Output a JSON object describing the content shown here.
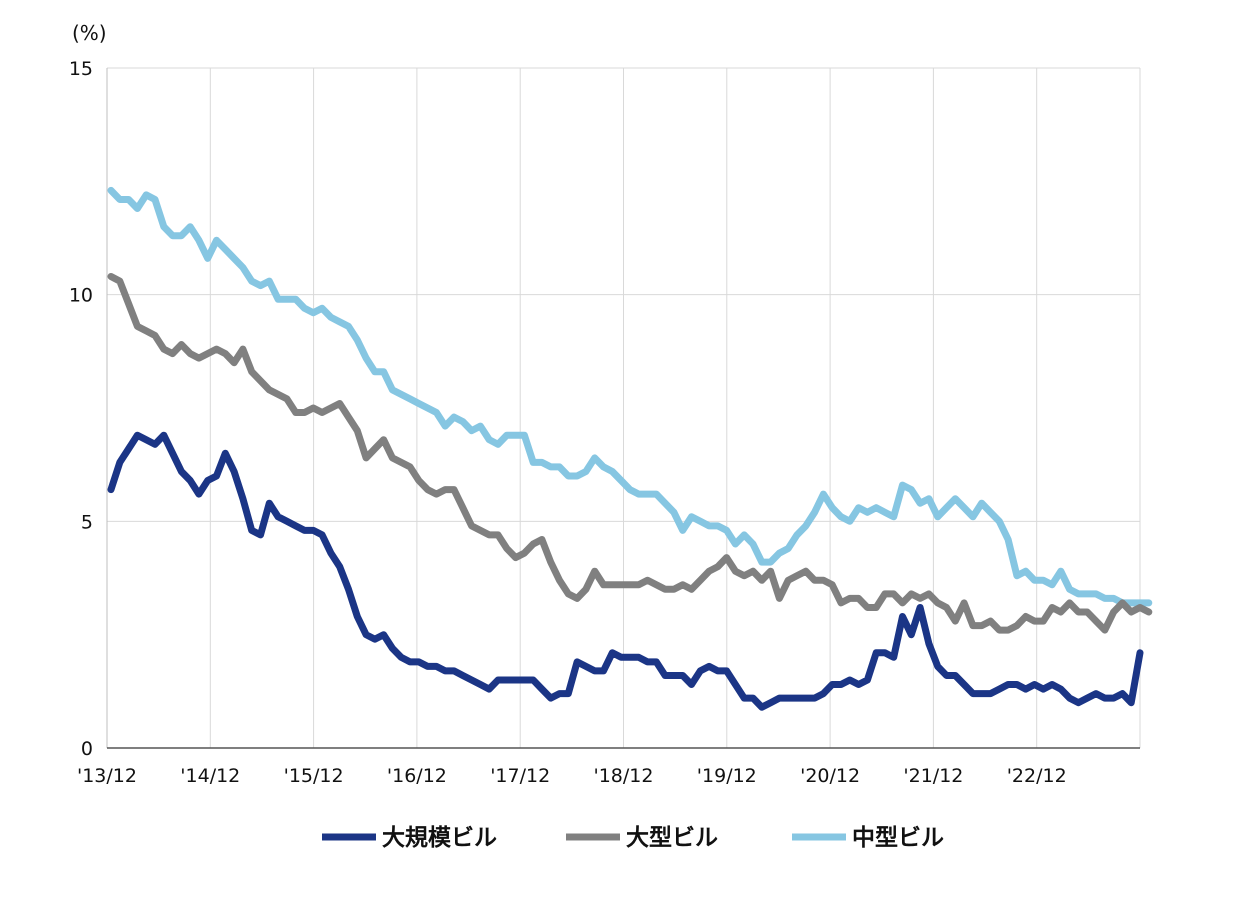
{
  "chart_data": {
    "type": "line",
    "ylabel": "(%)",
    "ylim": [
      0,
      15
    ],
    "yticks": [
      "0",
      "5",
      "10",
      "15"
    ],
    "x_tick_labels": [
      "'13/12",
      "'14/12",
      "'15/12",
      "'16/12",
      "'17/12",
      "'18/12",
      "'19/12",
      "'20/12",
      "'21/12",
      "'22/12"
    ],
    "grid": true,
    "legend_position": "bottom",
    "series": [
      {
        "name": "大規模ビル",
        "color": "#1b3586",
        "values": [
          5.7,
          6.3,
          6.6,
          6.9,
          6.8,
          6.7,
          6.9,
          6.5,
          6.1,
          5.9,
          5.6,
          5.9,
          6.0,
          6.5,
          6.1,
          5.5,
          4.8,
          4.7,
          5.4,
          5.1,
          5.0,
          4.9,
          4.8,
          4.8,
          4.7,
          4.3,
          4.0,
          3.5,
          2.9,
          2.5,
          2.4,
          2.5,
          2.2,
          2.0,
          1.9,
          1.9,
          1.8,
          1.8,
          1.7,
          1.7,
          1.6,
          1.5,
          1.4,
          1.3,
          1.5,
          1.5,
          1.5,
          1.5,
          1.5,
          1.3,
          1.1,
          1.2,
          1.2,
          1.9,
          1.8,
          1.7,
          1.7,
          2.1,
          2.0,
          2.0,
          2.0,
          1.9,
          1.9,
          1.6,
          1.6,
          1.6,
          1.4,
          1.7,
          1.8,
          1.7,
          1.7,
          1.4,
          1.1,
          1.1,
          0.9,
          1.0,
          1.1,
          1.1,
          1.1,
          1.1,
          1.1,
          1.2,
          1.4,
          1.4,
          1.5,
          1.4,
          1.5,
          2.1,
          2.1,
          2.0,
          2.9,
          2.5,
          3.1,
          2.3,
          1.8,
          1.6,
          1.6,
          1.4,
          1.2,
          1.2,
          1.2,
          1.3,
          1.4,
          1.4,
          1.3,
          1.4,
          1.3,
          1.4,
          1.3,
          1.1,
          1.0,
          1.1,
          1.2,
          1.1,
          1.1,
          1.2,
          1.0,
          2.1
        ]
      },
      {
        "name": "大型ビル",
        "color": "#808080",
        "values": [
          10.4,
          10.3,
          9.8,
          9.3,
          9.2,
          9.1,
          8.8,
          8.7,
          8.9,
          8.7,
          8.6,
          8.7,
          8.8,
          8.7,
          8.5,
          8.8,
          8.3,
          8.1,
          7.9,
          7.8,
          7.7,
          7.4,
          7.4,
          7.5,
          7.4,
          7.5,
          7.6,
          7.3,
          7.0,
          6.4,
          6.6,
          6.8,
          6.4,
          6.3,
          6.2,
          5.9,
          5.7,
          5.6,
          5.7,
          5.7,
          5.3,
          4.9,
          4.8,
          4.7,
          4.7,
          4.4,
          4.2,
          4.3,
          4.5,
          4.6,
          4.1,
          3.7,
          3.4,
          3.3,
          3.5,
          3.9,
          3.6,
          3.6,
          3.6,
          3.6,
          3.6,
          3.7,
          3.6,
          3.5,
          3.5,
          3.6,
          3.5,
          3.7,
          3.9,
          4.0,
          4.2,
          3.9,
          3.8,
          3.9,
          3.7,
          3.9,
          3.3,
          3.7,
          3.8,
          3.9,
          3.7,
          3.7,
          3.6,
          3.2,
          3.3,
          3.3,
          3.1,
          3.1,
          3.4,
          3.4,
          3.2,
          3.4,
          3.3,
          3.4,
          3.2,
          3.1,
          2.8,
          3.2,
          2.7,
          2.7,
          2.8,
          2.6,
          2.6,
          2.7,
          2.9,
          2.8,
          2.8,
          3.1,
          3.0,
          3.2,
          3.0,
          3.0,
          2.8,
          2.6,
          3.0,
          3.2,
          3.0,
          3.1,
          3.0
        ]
      },
      {
        "name": "中型ビル",
        "color": "#86c6e2",
        "values": [
          12.3,
          12.1,
          12.1,
          11.9,
          12.2,
          12.1,
          11.5,
          11.3,
          11.3,
          11.5,
          11.2,
          10.8,
          11.2,
          11.0,
          10.8,
          10.6,
          10.3,
          10.2,
          10.3,
          9.9,
          9.9,
          9.9,
          9.7,
          9.6,
          9.7,
          9.5,
          9.4,
          9.3,
          9.0,
          8.6,
          8.3,
          8.3,
          7.9,
          7.8,
          7.7,
          7.6,
          7.5,
          7.4,
          7.1,
          7.3,
          7.2,
          7.0,
          7.1,
          6.8,
          6.7,
          6.9,
          6.9,
          6.9,
          6.3,
          6.3,
          6.2,
          6.2,
          6.0,
          6.0,
          6.1,
          6.4,
          6.2,
          6.1,
          5.9,
          5.7,
          5.6,
          5.6,
          5.6,
          5.4,
          5.2,
          4.8,
          5.1,
          5.0,
          4.9,
          4.9,
          4.8,
          4.5,
          4.7,
          4.5,
          4.1,
          4.1,
          4.3,
          4.4,
          4.7,
          4.9,
          5.2,
          5.6,
          5.3,
          5.1,
          5.0,
          5.3,
          5.2,
          5.3,
          5.2,
          5.1,
          5.8,
          5.7,
          5.4,
          5.5,
          5.1,
          5.3,
          5.5,
          5.3,
          5.1,
          5.4,
          5.2,
          5.0,
          4.6,
          3.8,
          3.9,
          3.7,
          3.7,
          3.6,
          3.9,
          3.5,
          3.4,
          3.4,
          3.4,
          3.3,
          3.3,
          3.2,
          3.2,
          3.2,
          3.2
        ]
      }
    ]
  }
}
